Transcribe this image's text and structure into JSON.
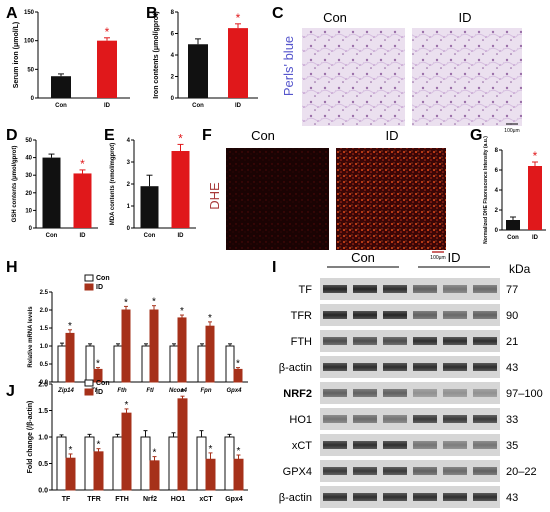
{
  "colors": {
    "con": "#111111",
    "id": "#e0181b",
    "h_con": "#111111",
    "h_id": "#a6311a",
    "j_con": "#111111",
    "j_id": "#a6311a",
    "perls": "#5555cc",
    "dhe": "#a83a3a"
  },
  "panels": {
    "A": {
      "letter": "A"
    },
    "B": {
      "letter": "B"
    },
    "C": {
      "letter": "C",
      "con": "Con",
      "id": "ID",
      "stain": "Perls' blue",
      "scale": "100μm"
    },
    "D": {
      "letter": "D"
    },
    "E": {
      "letter": "E"
    },
    "F": {
      "letter": "F",
      "con": "Con",
      "id": "ID",
      "stain": "DHE",
      "scale": "100μm"
    },
    "G": {
      "letter": "G"
    },
    "H": {
      "letter": "H"
    },
    "I": {
      "letter": "I",
      "con": "Con",
      "id": "ID",
      "kda": "kDa",
      "rows": [
        {
          "label": "TF",
          "kda": "77"
        },
        {
          "label": "TFR",
          "kda": "90"
        },
        {
          "label": "FTH",
          "kda": "21"
        },
        {
          "label": "β-actin",
          "kda": "43"
        },
        {
          "label": "NRF2",
          "kda": "97–100"
        },
        {
          "label": "HO1",
          "kda": "33"
        },
        {
          "label": "xCT",
          "kda": "35"
        },
        {
          "label": "GPX4",
          "kda": "20–22"
        },
        {
          "label": "β-actin",
          "kda": "43"
        }
      ]
    },
    "J": {
      "letter": "J"
    }
  },
  "chart_data": [
    {
      "id": "A",
      "type": "bar",
      "categories": [
        "Con",
        "ID"
      ],
      "values": [
        38,
        100
      ],
      "errors": [
        4,
        5
      ],
      "ylabel": "Serum iron (μmol/L)",
      "ylim": [
        0,
        150
      ],
      "yticks": [
        "0",
        "50",
        "100",
        "150"
      ],
      "significance": [
        "",
        "*"
      ]
    },
    {
      "id": "B",
      "type": "bar",
      "categories": [
        "Con",
        "ID"
      ],
      "values": [
        5.0,
        6.5
      ],
      "errors": [
        0.5,
        0.4
      ],
      "ylabel": "Iron contents (μmol/gprot)",
      "ylim": [
        0,
        8
      ],
      "yticks": [
        "0",
        "2",
        "4",
        "6",
        "8"
      ],
      "significance": [
        "",
        "*"
      ]
    },
    {
      "id": "D",
      "type": "bar",
      "categories": [
        "Con",
        "ID"
      ],
      "values": [
        40,
        31
      ],
      "errors": [
        2,
        2
      ],
      "ylabel": "GSH contents (μmol/gprot)",
      "ylim": [
        0,
        50
      ],
      "yticks": [
        "0",
        "10",
        "20",
        "30",
        "40",
        "50"
      ],
      "significance": [
        "",
        "*"
      ]
    },
    {
      "id": "E",
      "type": "bar",
      "categories": [
        "Con",
        "ID"
      ],
      "values": [
        1.9,
        3.5
      ],
      "errors": [
        0.5,
        0.3
      ],
      "ylabel": "MDA contents (nmol/mgprot)",
      "ylim": [
        0,
        4
      ],
      "yticks": [
        "0",
        "1",
        "2",
        "3",
        "4"
      ],
      "significance": [
        "",
        "*"
      ]
    },
    {
      "id": "G",
      "type": "bar",
      "categories": [
        "Con",
        "ID"
      ],
      "values": [
        1.0,
        6.4
      ],
      "errors": [
        0.3,
        0.4
      ],
      "ylabel": "Normalized DHE Fluorescence Intensity (a.u.)",
      "ylim": [
        0,
        8
      ],
      "yticks": [
        "0",
        "2",
        "4",
        "6",
        "8"
      ],
      "significance": [
        "",
        "*"
      ]
    },
    {
      "id": "H",
      "type": "bar",
      "categories": [
        "Zip14",
        "Tf",
        "Fth",
        "Ftl",
        "Ncoa4",
        "Fpn",
        "Gpx4"
      ],
      "ylabel": "Relative mRNA levels",
      "ylim": [
        0,
        2.5
      ],
      "yticks": [
        "0.0",
        "0.5",
        "1.0",
        "1.5",
        "2.0",
        "2.5"
      ],
      "legend": [
        "Con",
        "ID"
      ],
      "series": [
        {
          "name": "Con",
          "values": [
            1.0,
            1.0,
            1.0,
            1.0,
            1.0,
            1.0,
            1.0
          ],
          "errors": [
            0.08,
            0.06,
            0.06,
            0.06,
            0.06,
            0.06,
            0.06
          ]
        },
        {
          "name": "ID",
          "values": [
            1.35,
            0.35,
            2.0,
            2.0,
            1.78,
            1.55,
            0.35
          ],
          "errors": [
            0.1,
            0.05,
            0.1,
            0.12,
            0.08,
            0.12,
            0.05
          ]
        }
      ],
      "significance": [
        "*",
        "*",
        "*",
        "*",
        "*",
        "*",
        "*"
      ]
    },
    {
      "id": "J",
      "type": "bar",
      "categories": [
        "TF",
        "TFR",
        "FTH",
        "Nrf2",
        "HO1",
        "xCT",
        "Gpx4"
      ],
      "ylabel": "Fold change (/β-actin)",
      "ylim": [
        0,
        2.0
      ],
      "yticks": [
        "0.0",
        "0.5",
        "1.0",
        "1.5",
        "2.0"
      ],
      "legend": [
        "Con",
        "ID"
      ],
      "series": [
        {
          "name": "Con",
          "values": [
            1.0,
            1.0,
            1.0,
            1.0,
            1.0,
            1.0,
            1.0
          ],
          "errors": [
            0.04,
            0.05,
            0.05,
            0.12,
            0.08,
            0.12,
            0.05
          ]
        },
        {
          "name": "ID",
          "values": [
            0.6,
            0.72,
            1.45,
            0.55,
            1.72,
            0.58,
            0.58
          ],
          "errors": [
            0.08,
            0.06,
            0.08,
            0.08,
            0.05,
            0.12,
            0.08
          ]
        }
      ],
      "significance": [
        "*",
        "*",
        "*",
        "*",
        "*",
        "*",
        "*"
      ]
    }
  ]
}
